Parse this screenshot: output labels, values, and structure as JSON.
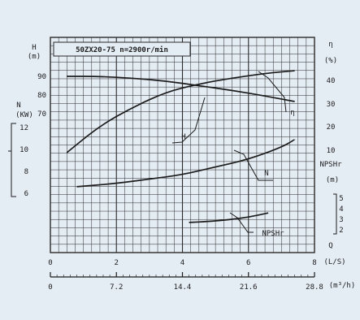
{
  "chart_data": {
    "type": "line",
    "title": "50ZX20-75  n=2900r/min",
    "x_axis": {
      "flow_ls": {
        "label": "(L/S)",
        "ticks": [
          "0",
          "2",
          "4",
          "6",
          "8"
        ],
        "range": [
          0,
          8
        ]
      },
      "flow_m3h": {
        "label": "(m³/h)",
        "ticks": [
          "0",
          "7.2",
          "14.4",
          "21.6",
          "28.8"
        ],
        "range": [
          0,
          28.8
        ]
      },
      "q_label": "Q"
    },
    "y_axes": {
      "head": {
        "name": "H",
        "unit": "(m)",
        "ticks": [
          "90",
          "80",
          "70"
        ],
        "range": [
          70,
          90
        ]
      },
      "power": {
        "name": "N",
        "unit": "(KW)",
        "ticks": [
          "12",
          "10",
          "8",
          "6"
        ],
        "range": [
          6,
          12
        ]
      },
      "efficiency": {
        "name": "η",
        "unit": "(%)",
        "ticks": [
          "40",
          "30",
          "20",
          "10"
        ],
        "range": [
          10,
          40
        ]
      },
      "npsh": {
        "name": "NPSHr",
        "unit": "(m)",
        "ticks": [
          "5",
          "4",
          "3",
          "2"
        ],
        "range": [
          2,
          5
        ]
      }
    },
    "series": [
      {
        "name": "H",
        "axis": "head",
        "x": [
          0.5,
          1.5,
          2.5,
          3.5,
          4.5,
          5.5,
          6.5,
          7.4
        ],
        "y": [
          90,
          90,
          89,
          87.5,
          85,
          82.5,
          79.5,
          76.5
        ]
      },
      {
        "name": "η",
        "axis": "efficiency",
        "x": [
          0.5,
          1.5,
          2.5,
          3.5,
          4.5,
          5.5,
          6.5,
          7.4
        ],
        "y": [
          9,
          20.5,
          28.5,
          35,
          38.5,
          41,
          43,
          44.2
        ]
      },
      {
        "name": "N",
        "axis": "power",
        "x": [
          0.8,
          2,
          3,
          4,
          5,
          6,
          7,
          7.4
        ],
        "y": [
          6.6,
          6.9,
          7.3,
          7.7,
          8.4,
          9.1,
          10.2,
          10.9
        ]
      },
      {
        "name": "NPSHr",
        "axis": "npsh",
        "x": [
          4.2,
          4.8,
          5.4,
          6,
          6.6
        ],
        "y": [
          2.7,
          2.8,
          2.95,
          3.2,
          3.6
        ]
      }
    ],
    "curve_labels": [
      "η",
      "H",
      "N",
      "NPSHr"
    ],
    "grid": true,
    "colors": {
      "curve": "#1c1c1c",
      "grid": "#2a2a2a",
      "background": "#e4ecf4"
    }
  }
}
